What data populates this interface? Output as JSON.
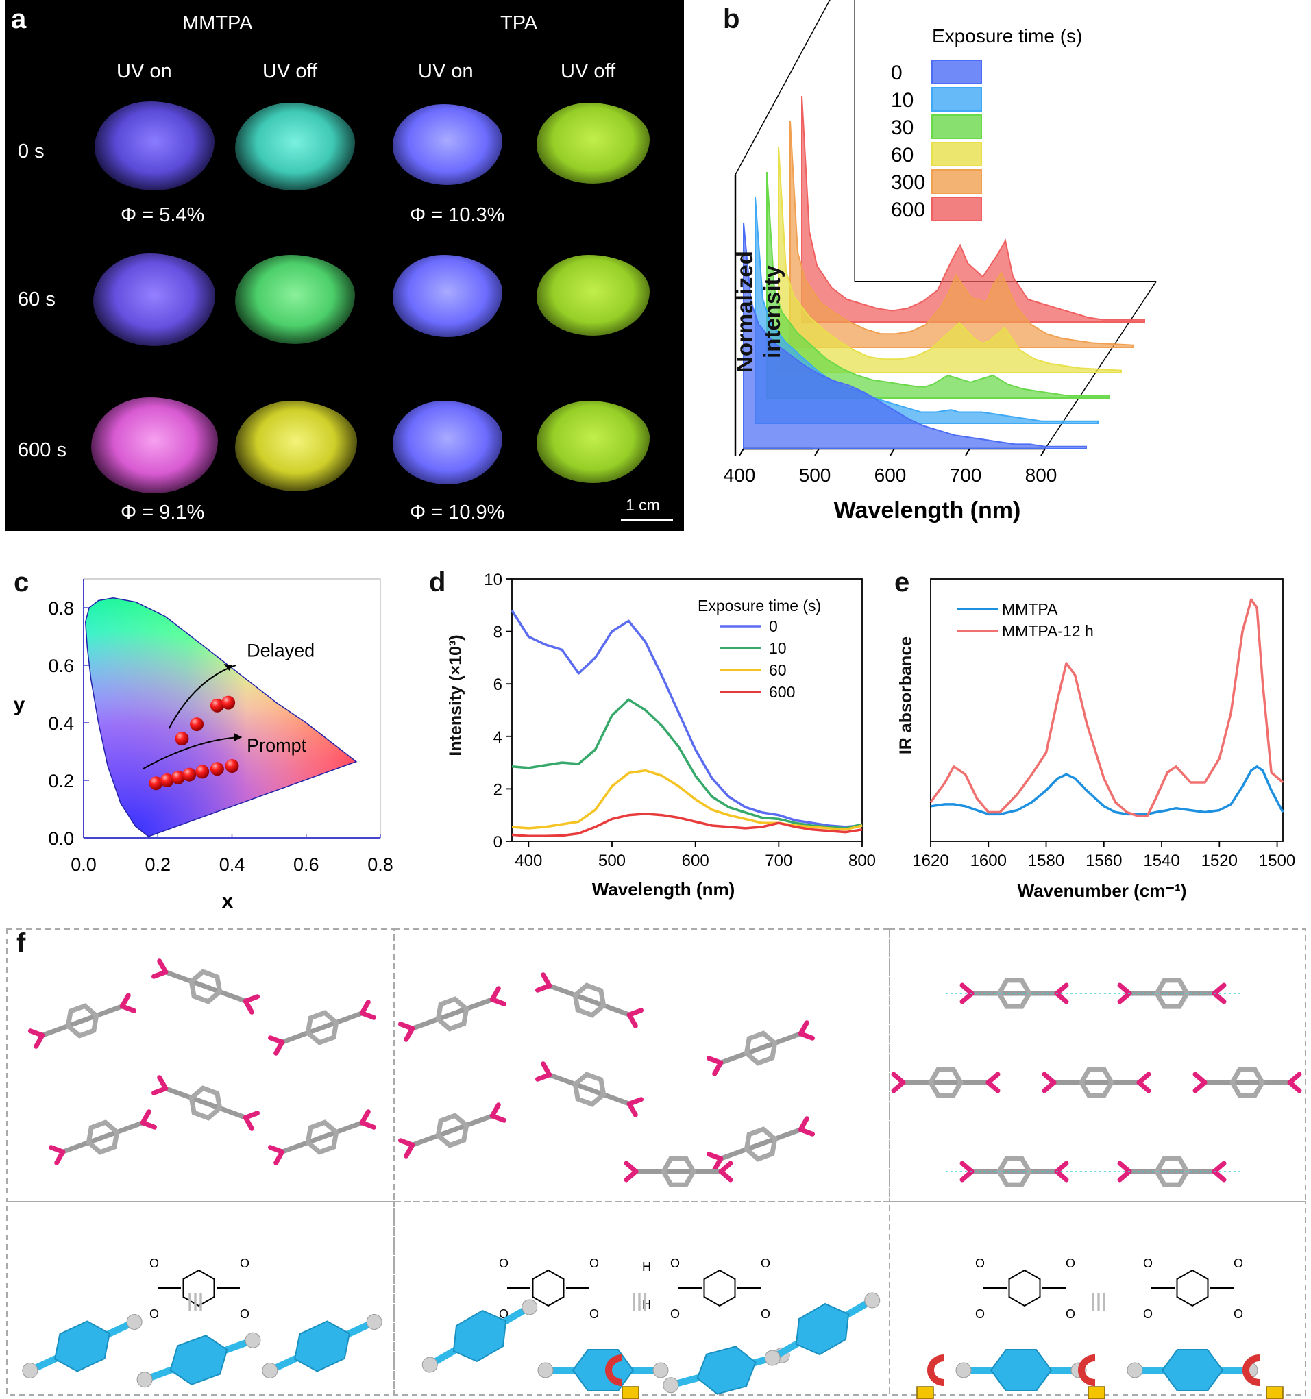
{
  "panels": {
    "a": "a",
    "b": "b",
    "c": "c",
    "d": "d",
    "e": "e",
    "f": "f"
  },
  "panel_a": {
    "groups": [
      "MMTPA",
      "TPA"
    ],
    "columns": [
      "UV on",
      "UV off",
      "UV on",
      "UV off"
    ],
    "rows": [
      "0 s",
      "60 s",
      "600 s"
    ],
    "qy": [
      "Φ = 5.4%",
      "Φ = 10.3%",
      "Φ = 9.1%",
      "Φ = 10.9%"
    ],
    "scale_bar": "1 cm",
    "colors": {
      "mmtpa_on": [
        "#6d5cff",
        "#7a62f0",
        "#e05ad8"
      ],
      "mmtpa_off": [
        "#3fd7c0",
        "#5be07a",
        "#e4e83a"
      ],
      "tpa_on": [
        "#6a6cff",
        "#6a6cff",
        "#6a6cff"
      ],
      "tpa_off": [
        "#9ad628",
        "#9ad628",
        "#9ad628"
      ]
    }
  },
  "chart_data": [
    {
      "id": "b",
      "type": "area",
      "title": "",
      "xlabel": "Wavelength (nm)",
      "ylabel": "Normalized intensity",
      "xlim": [
        400,
        800
      ],
      "xticks": [
        "400",
        "500",
        "600",
        "700",
        "800"
      ],
      "legend_title": "Exposure time (s)",
      "x": [
        400,
        410,
        420,
        440,
        460,
        480,
        500,
        520,
        540,
        560,
        580,
        600,
        610,
        620,
        640,
        660,
        670,
        680,
        700,
        720,
        740,
        760,
        780,
        800
      ],
      "series": [
        {
          "name": "0",
          "color": "#4c6ef5",
          "values": [
            1.0,
            0.65,
            0.55,
            0.47,
            0.42,
            0.37,
            0.33,
            0.3,
            0.28,
            0.25,
            0.21,
            0.17,
            0.15,
            0.13,
            0.1,
            0.08,
            0.07,
            0.06,
            0.05,
            0.04,
            0.03,
            0.02,
            0.02,
            0.01
          ]
        },
        {
          "name": "10",
          "color": "#3fa9f5",
          "values": [
            1.0,
            0.55,
            0.45,
            0.36,
            0.3,
            0.24,
            0.19,
            0.16,
            0.14,
            0.11,
            0.09,
            0.07,
            0.06,
            0.05,
            0.05,
            0.06,
            0.05,
            0.05,
            0.05,
            0.04,
            0.03,
            0.02,
            0.01,
            0.01
          ]
        },
        {
          "name": "30",
          "color": "#6ad94a",
          "values": [
            1.0,
            0.48,
            0.38,
            0.29,
            0.23,
            0.17,
            0.13,
            0.1,
            0.08,
            0.07,
            0.06,
            0.05,
            0.05,
            0.06,
            0.1,
            0.08,
            0.07,
            0.08,
            0.1,
            0.06,
            0.04,
            0.03,
            0.02,
            0.01
          ]
        },
        {
          "name": "60",
          "color": "#e8e04a",
          "values": [
            1.0,
            0.45,
            0.34,
            0.25,
            0.19,
            0.14,
            0.1,
            0.07,
            0.06,
            0.06,
            0.07,
            0.1,
            0.13,
            0.16,
            0.22,
            0.15,
            0.13,
            0.14,
            0.2,
            0.1,
            0.06,
            0.04,
            0.03,
            0.02
          ]
        },
        {
          "name": "300",
          "color": "#f0a050",
          "values": [
            1.0,
            0.42,
            0.3,
            0.2,
            0.15,
            0.11,
            0.08,
            0.06,
            0.06,
            0.07,
            0.1,
            0.18,
            0.24,
            0.32,
            0.22,
            0.2,
            0.28,
            0.33,
            0.18,
            0.1,
            0.06,
            0.04,
            0.03,
            0.02
          ]
        },
        {
          "name": "600",
          "color": "#f06060",
          "values": [
            1.0,
            0.4,
            0.25,
            0.15,
            0.1,
            0.08,
            0.06,
            0.05,
            0.06,
            0.09,
            0.14,
            0.28,
            0.34,
            0.26,
            0.2,
            0.3,
            0.36,
            0.2,
            0.1,
            0.08,
            0.06,
            0.04,
            0.02,
            0.01
          ]
        }
      ]
    },
    {
      "id": "c",
      "type": "scatter",
      "title": "",
      "xlabel": "x",
      "ylabel": "y",
      "xlim": [
        0.0,
        0.8
      ],
      "ylim": [
        0.0,
        0.9
      ],
      "xticks": [
        "0.0",
        "0.2",
        "0.4",
        "0.6",
        "0.8"
      ],
      "yticks": [
        "0.0",
        "0.2",
        "0.4",
        "0.6",
        "0.8"
      ],
      "annotations": [
        "Delayed",
        "Prompt"
      ],
      "series": [
        {
          "name": "Delayed",
          "x": [
            0.265,
            0.305,
            0.36,
            0.39
          ],
          "y": [
            0.345,
            0.395,
            0.46,
            0.47
          ]
        },
        {
          "name": "Prompt",
          "x": [
            0.195,
            0.225,
            0.255,
            0.285,
            0.32,
            0.36,
            0.4
          ],
          "y": [
            0.19,
            0.2,
            0.21,
            0.22,
            0.23,
            0.24,
            0.25
          ]
        }
      ],
      "gamut_locus": {
        "x": [
          0.175,
          0.14,
          0.1,
          0.065,
          0.04,
          0.02,
          0.01,
          0.005,
          0.015,
          0.04,
          0.08,
          0.14,
          0.22,
          0.3,
          0.37,
          0.45,
          0.52,
          0.6,
          0.68,
          0.735,
          0.175
        ],
        "y": [
          0.005,
          0.04,
          0.12,
          0.25,
          0.4,
          0.55,
          0.66,
          0.75,
          0.8,
          0.825,
          0.834,
          0.82,
          0.77,
          0.69,
          0.62,
          0.54,
          0.47,
          0.4,
          0.32,
          0.265,
          0.005
        ]
      }
    },
    {
      "id": "d",
      "type": "line",
      "title": "",
      "xlabel": "Wavelength (nm)",
      "ylabel": "Intensity (×10³)",
      "xlim": [
        380,
        800
      ],
      "ylim": [
        0,
        10
      ],
      "xticks": [
        "400",
        "500",
        "600",
        "700",
        "800"
      ],
      "yticks": [
        "0",
        "2",
        "4",
        "6",
        "8",
        "10"
      ],
      "legend_title": "Exposure time (s)",
      "x": [
        380,
        400,
        420,
        440,
        460,
        480,
        500,
        520,
        540,
        560,
        580,
        600,
        620,
        640,
        660,
        680,
        700,
        720,
        740,
        760,
        780,
        800
      ],
      "series": [
        {
          "name": "0",
          "color": "#5b6cf0",
          "values": [
            8.8,
            7.8,
            7.5,
            7.3,
            6.4,
            7.0,
            8.0,
            8.4,
            7.6,
            6.3,
            4.9,
            3.5,
            2.4,
            1.7,
            1.3,
            1.1,
            1.0,
            0.8,
            0.7,
            0.6,
            0.55,
            0.6
          ]
        },
        {
          "name": "10",
          "color": "#35a86a",
          "values": [
            2.85,
            2.8,
            2.9,
            3.0,
            2.95,
            3.5,
            4.8,
            5.4,
            5.0,
            4.4,
            3.6,
            2.5,
            1.7,
            1.3,
            1.1,
            0.9,
            0.85,
            0.7,
            0.6,
            0.55,
            0.5,
            0.65
          ]
        },
        {
          "name": "60",
          "color": "#f5c424",
          "values": [
            0.55,
            0.5,
            0.55,
            0.65,
            0.75,
            1.2,
            2.1,
            2.6,
            2.7,
            2.5,
            2.1,
            1.6,
            1.2,
            1.0,
            0.85,
            0.7,
            0.7,
            0.6,
            0.55,
            0.5,
            0.45,
            0.6
          ]
        },
        {
          "name": "600",
          "color": "#e83b3b",
          "values": [
            0.25,
            0.2,
            0.2,
            0.22,
            0.3,
            0.55,
            0.85,
            1.0,
            1.05,
            1.0,
            0.9,
            0.75,
            0.6,
            0.55,
            0.5,
            0.55,
            0.7,
            0.55,
            0.45,
            0.4,
            0.35,
            0.45
          ]
        }
      ]
    },
    {
      "id": "e",
      "type": "line",
      "title": "",
      "xlabel": "Wavenumber (cm⁻¹)",
      "ylabel": "IR absorbance",
      "xlim": [
        1620,
        1498
      ],
      "xticks": [
        "1620",
        "1600",
        "1580",
        "1560",
        "1540",
        "1520",
        "1500"
      ],
      "x": [
        1620,
        1615,
        1612,
        1608,
        1604,
        1600,
        1596,
        1590,
        1585,
        1580,
        1576,
        1573,
        1570,
        1566,
        1560,
        1556,
        1552,
        1548,
        1545,
        1542,
        1538,
        1535,
        1530,
        1525,
        1520,
        1516,
        1512,
        1509,
        1507,
        1505,
        1502,
        1498
      ],
      "series": [
        {
          "name": "MMTPA",
          "color": "#1e90e0",
          "values": [
            0.08,
            0.09,
            0.09,
            0.08,
            0.06,
            0.04,
            0.04,
            0.06,
            0.1,
            0.16,
            0.22,
            0.24,
            0.22,
            0.16,
            0.08,
            0.05,
            0.04,
            0.04,
            0.04,
            0.05,
            0.06,
            0.07,
            0.06,
            0.05,
            0.06,
            0.09,
            0.18,
            0.26,
            0.28,
            0.26,
            0.16,
            0.05
          ]
        },
        {
          "name": "MMTPA-12 h",
          "color": "#f07070",
          "values": [
            0.1,
            0.2,
            0.28,
            0.24,
            0.12,
            0.05,
            0.05,
            0.14,
            0.24,
            0.35,
            0.62,
            0.8,
            0.74,
            0.5,
            0.22,
            0.1,
            0.05,
            0.03,
            0.03,
            0.12,
            0.25,
            0.28,
            0.2,
            0.2,
            0.32,
            0.55,
            0.96,
            1.12,
            1.08,
            0.7,
            0.25,
            0.2
          ]
        }
      ]
    }
  ],
  "panel_f": {
    "separator": "III",
    "formula_bonds": [
      "H",
      "H"
    ]
  }
}
